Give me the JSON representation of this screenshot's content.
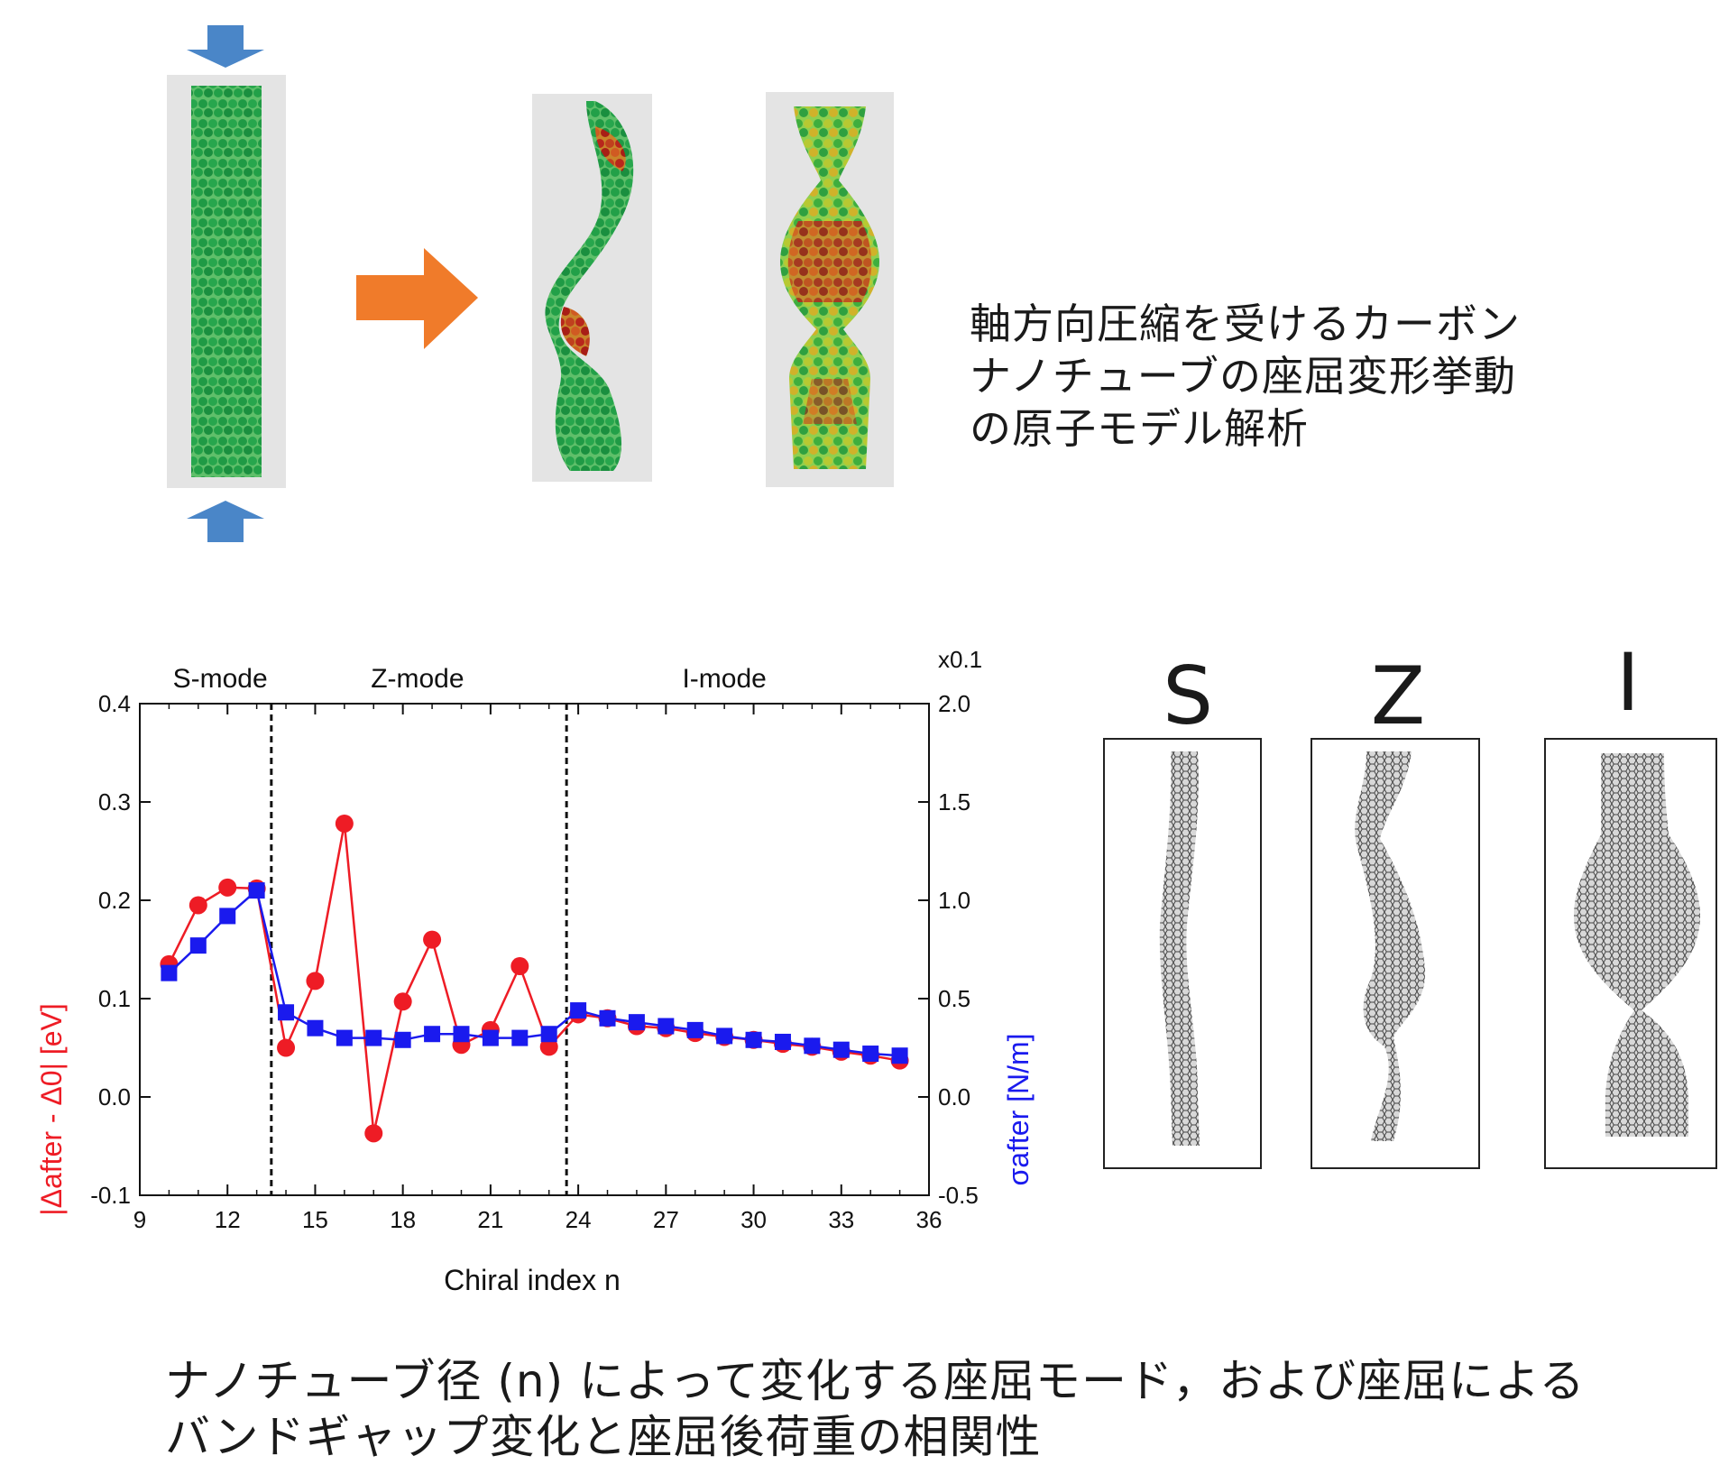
{
  "description": {
    "lines": [
      "軸方向圧縮を受けるカーボン",
      "ナノチューブの座屈変形挙動",
      "の原子モデル解析"
    ]
  },
  "caption": {
    "lines": [
      "ナノチューブ径 (n) によって変化する座屈モード，および座屈による",
      "バンドギャップ変化と座屈後荷重の相関性"
    ]
  },
  "mode_panels": [
    {
      "label": "S"
    },
    {
      "label": "Z"
    },
    {
      "label": "I"
    }
  ],
  "colors": {
    "red_series": "#ee1c25",
    "blue_series": "#1a1aee",
    "arrow_blue": "#4a86c8",
    "arrow_orange": "#f07b2a",
    "tube_green": "#2fa84f"
  },
  "icons": [
    "compression-arrow-down-icon",
    "compression-arrow-up-icon",
    "deformation-arrow-right-icon"
  ],
  "chart_data": {
    "type": "line",
    "xlabel": "Chiral index n",
    "ylabel_left": "|Δafter - Δ0| [eV]",
    "ylabel_right": "σafter [N/m]",
    "right_axis_multiplier": "x0.1",
    "xlim": [
      9,
      36
    ],
    "ylim_left": [
      -0.1,
      0.4
    ],
    "ylim_right": [
      -0.5,
      2.0
    ],
    "x_ticks": [
      "9",
      "12",
      "15",
      "18",
      "21",
      "24",
      "27",
      "30",
      "33",
      "36"
    ],
    "y_ticks_left": [
      "-0.1",
      "0.0",
      "0.1",
      "0.2",
      "0.3",
      "0.4"
    ],
    "y_ticks_right": [
      "-0.5",
      "0.0",
      "0.5",
      "1.0",
      "1.5",
      "2.0"
    ],
    "mode_regions": [
      {
        "label": "S-mode",
        "x_center": 11.75
      },
      {
        "label": "Z-mode",
        "x_center": 18.5
      },
      {
        "label": "I-mode",
        "x_center": 29.0
      }
    ],
    "mode_boundaries": [
      13.5,
      23.6
    ],
    "series": [
      {
        "name": "|Δafter - Δ0|",
        "axis": "left",
        "marker": "circle",
        "x": [
          10,
          11,
          12,
          13,
          14,
          15,
          16,
          17,
          18,
          19,
          20,
          21,
          22,
          23,
          24,
          25,
          26,
          27,
          28,
          29,
          30,
          31,
          32,
          33,
          34,
          35
        ],
        "values": [
          0.135,
          0.195,
          0.213,
          0.212,
          0.05,
          0.118,
          0.278,
          -0.037,
          0.097,
          0.16,
          0.053,
          0.068,
          0.133,
          0.051,
          0.084,
          0.08,
          0.072,
          0.07,
          0.065,
          0.061,
          0.058,
          0.054,
          0.051,
          0.046,
          0.042,
          0.037
        ]
      },
      {
        "name": "σafter",
        "axis": "right",
        "marker": "square",
        "x": [
          10,
          11,
          12,
          13,
          14,
          15,
          16,
          17,
          18,
          19,
          20,
          21,
          22,
          23,
          24,
          25,
          26,
          27,
          28,
          29,
          30,
          31,
          32,
          33,
          34,
          35
        ],
        "values": [
          0.63,
          0.77,
          0.92,
          1.05,
          0.43,
          0.35,
          0.3,
          0.3,
          0.29,
          0.32,
          0.32,
          0.3,
          0.3,
          0.32,
          0.44,
          0.4,
          0.38,
          0.36,
          0.34,
          0.31,
          0.29,
          0.28,
          0.26,
          0.24,
          0.22,
          0.21
        ]
      }
    ]
  }
}
